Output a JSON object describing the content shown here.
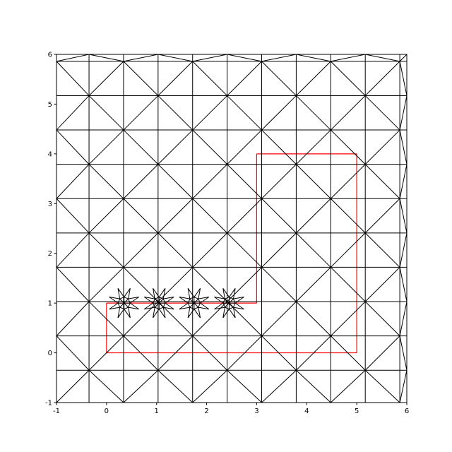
{
  "chart_data": {
    "type": "triangulation",
    "title": "",
    "xlabel": "",
    "ylabel": "",
    "xlim": [
      -1,
      6
    ],
    "ylim": [
      -1,
      6
    ],
    "xticks": [
      "-1",
      "0",
      "1",
      "2",
      "3",
      "4",
      "5",
      "6"
    ],
    "yticks": [
      "-1",
      "0",
      "1",
      "2",
      "3",
      "4",
      "5",
      "6"
    ],
    "grid": false,
    "mesh_color": "#000000",
    "boundary": {
      "color": "#ff0000",
      "polygon": [
        [
          0,
          0
        ],
        [
          5,
          0
        ],
        [
          5,
          4
        ],
        [
          3,
          4
        ],
        [
          3,
          1
        ],
        [
          0,
          1
        ]
      ]
    },
    "refined_points": [
      [
        0.35,
        1
      ],
      [
        1.05,
        1
      ],
      [
        1.75,
        1
      ],
      [
        2.45,
        1
      ]
    ]
  }
}
